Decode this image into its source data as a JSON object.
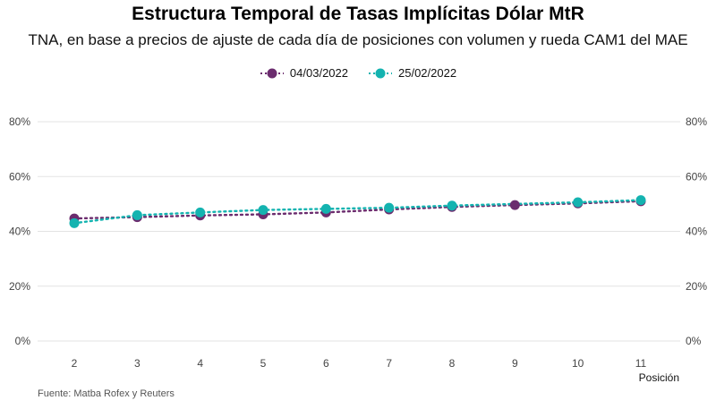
{
  "chart_data": {
    "type": "line",
    "title": "Estructura Temporal de Tasas Implícitas Dólar MtR",
    "subtitle": "TNA, en base a precios de ajuste de cada día de posiciones con volumen y rueda CAM1 del MAE",
    "xlabel": "Posición",
    "ylabel": "",
    "categories": [
      "2",
      "3",
      "4",
      "5",
      "6",
      "7",
      "8",
      "9",
      "10",
      "11"
    ],
    "y_ticks": [
      "0%",
      "20%",
      "40%",
      "60%",
      "80%"
    ],
    "ylim": [
      0,
      80
    ],
    "grid": true,
    "legend_position": "top",
    "series": [
      {
        "name": "04/03/2022",
        "color": "#6b2c6e",
        "values": [
          44.7,
          45.2,
          45.8,
          46.2,
          46.9,
          48.0,
          48.9,
          49.6,
          50.2,
          51.0
        ]
      },
      {
        "name": "25/02/2022",
        "color": "#14b3b0",
        "values": [
          43.0,
          45.9,
          46.9,
          47.8,
          48.2,
          48.6,
          49.4,
          null,
          50.6,
          51.4
        ]
      }
    ],
    "source": "Fuente: Matba Rofex y Reuters"
  }
}
